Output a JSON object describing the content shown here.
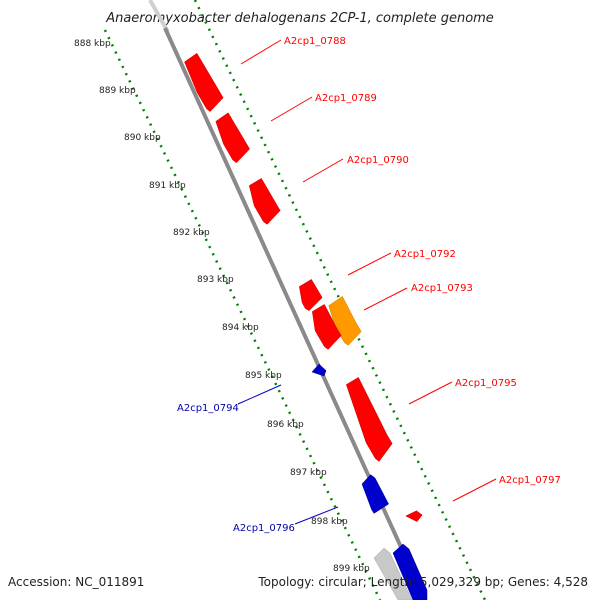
{
  "title": "Anaeromyxobacter dehalogenans 2CP-1, complete genome",
  "footer": {
    "accession": "Accession: NC_011891",
    "summary": "Topology: circular; Length: 5,029,329 bp; Genes: 4,528"
  },
  "ruler_ticks": [
    "888 kbp",
    "889 kbp",
    "890 kbp",
    "891 kbp",
    "892 kbp",
    "893 kbp",
    "894 kbp",
    "895 kbp",
    "896 kbp",
    "897 kbp",
    "898 kbp",
    "899 kbp"
  ],
  "genes": [
    {
      "id": "A2cp1_0788",
      "strand": "forward",
      "color": "#ff0000"
    },
    {
      "id": "A2cp1_0789",
      "strand": "forward",
      "color": "#ff0000"
    },
    {
      "id": "A2cp1_0790",
      "strand": "forward",
      "color": "#ff0000"
    },
    {
      "id": "A2cp1_0792",
      "strand": "forward",
      "color": "#ff0000"
    },
    {
      "id": "A2cp1_0793",
      "strand": "forward",
      "color": "#ff9900"
    },
    {
      "id": "A2cp1_0794",
      "strand": "reverse",
      "color": "#0000cc"
    },
    {
      "id": "A2cp1_0795",
      "strand": "forward",
      "color": "#ff0000"
    },
    {
      "id": "A2cp1_0796",
      "strand": "reverse",
      "color": "#0000cc"
    },
    {
      "id": "A2cp1_0797",
      "strand": "forward",
      "color": "#ff0000"
    }
  ],
  "colors": {
    "backbone": "#808080",
    "ruler": "#008000",
    "forward_gene": "#ff0000",
    "reverse_gene": "#0000cc",
    "highlight_gene": "#ff9900",
    "reverse_label": "#0000aa"
  }
}
